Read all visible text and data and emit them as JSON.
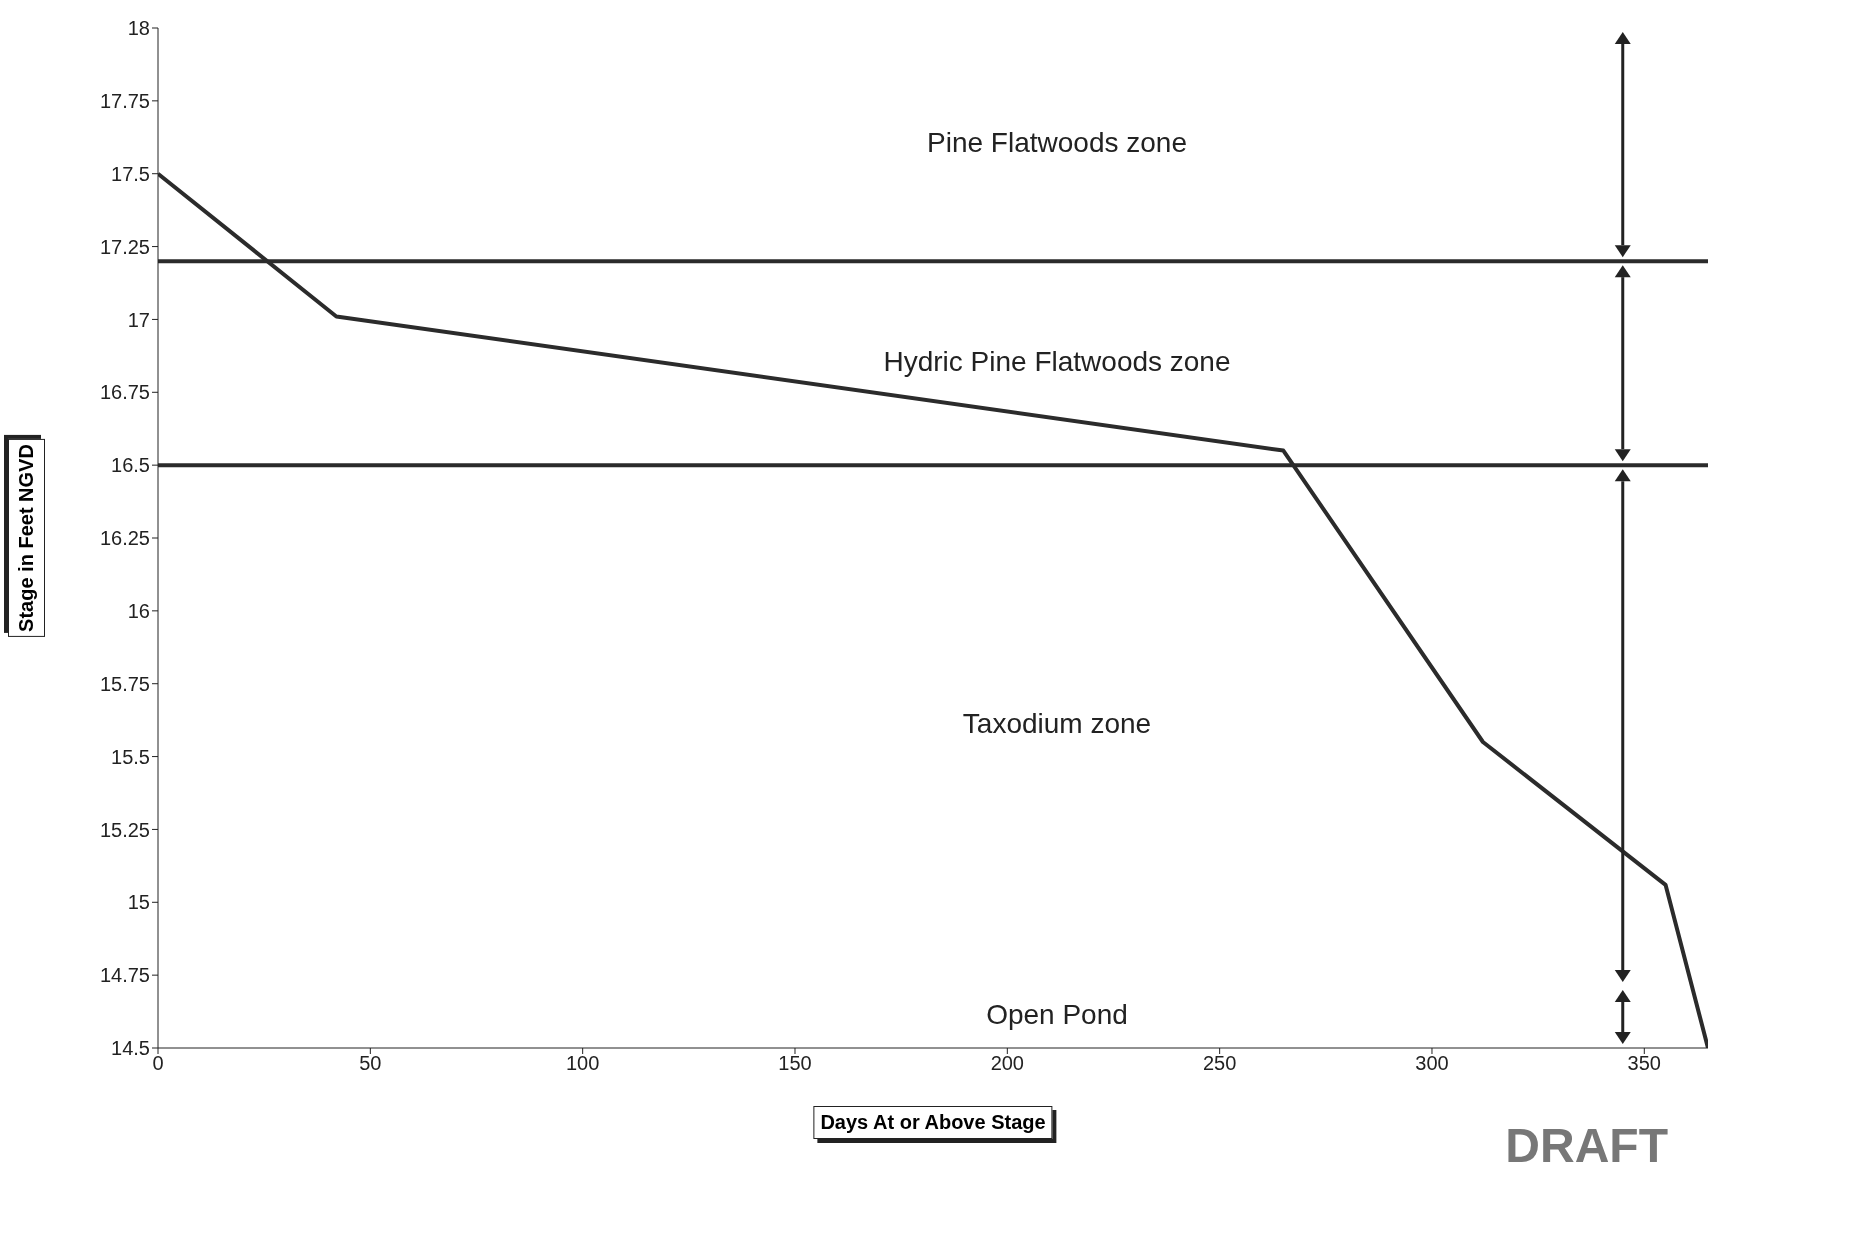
{
  "chart_data": {
    "type": "line",
    "xlabel": "Days At or Above Stage",
    "ylabel": "Stage in Feet NGVD",
    "x": [
      0,
      42,
      265,
      312,
      355,
      365
    ],
    "series": [
      {
        "color": "#2b2b2b",
        "values": [
          17.5,
          17.01,
          16.55,
          15.55,
          15.06,
          14.5
        ]
      }
    ],
    "xlim": [
      0,
      365
    ],
    "xticks": [
      0,
      50,
      100,
      150,
      200,
      250,
      300,
      350
    ],
    "ylim": [
      14.5,
      18
    ],
    "yticks": [
      14.5,
      14.75,
      15,
      15.25,
      15.5,
      15.75,
      16,
      16.25,
      16.5,
      16.75,
      17,
      17.25,
      17.5,
      17.75,
      18
    ],
    "ref_lines": [
      {
        "axis": "y",
        "value": 17.2,
        "color": "#2b2b2b"
      },
      {
        "axis": "y",
        "value": 16.5,
        "color": "#2b2b2b"
      }
    ],
    "annotations": [
      "Pine Flatwoods zone",
      "Hydric Pine Flatwoods zone",
      "Taxodium zone",
      "Open Pond",
      "DRAFT"
    ],
    "grid": false,
    "legend": false,
    "marker": "none",
    "line_style": "solid"
  }
}
